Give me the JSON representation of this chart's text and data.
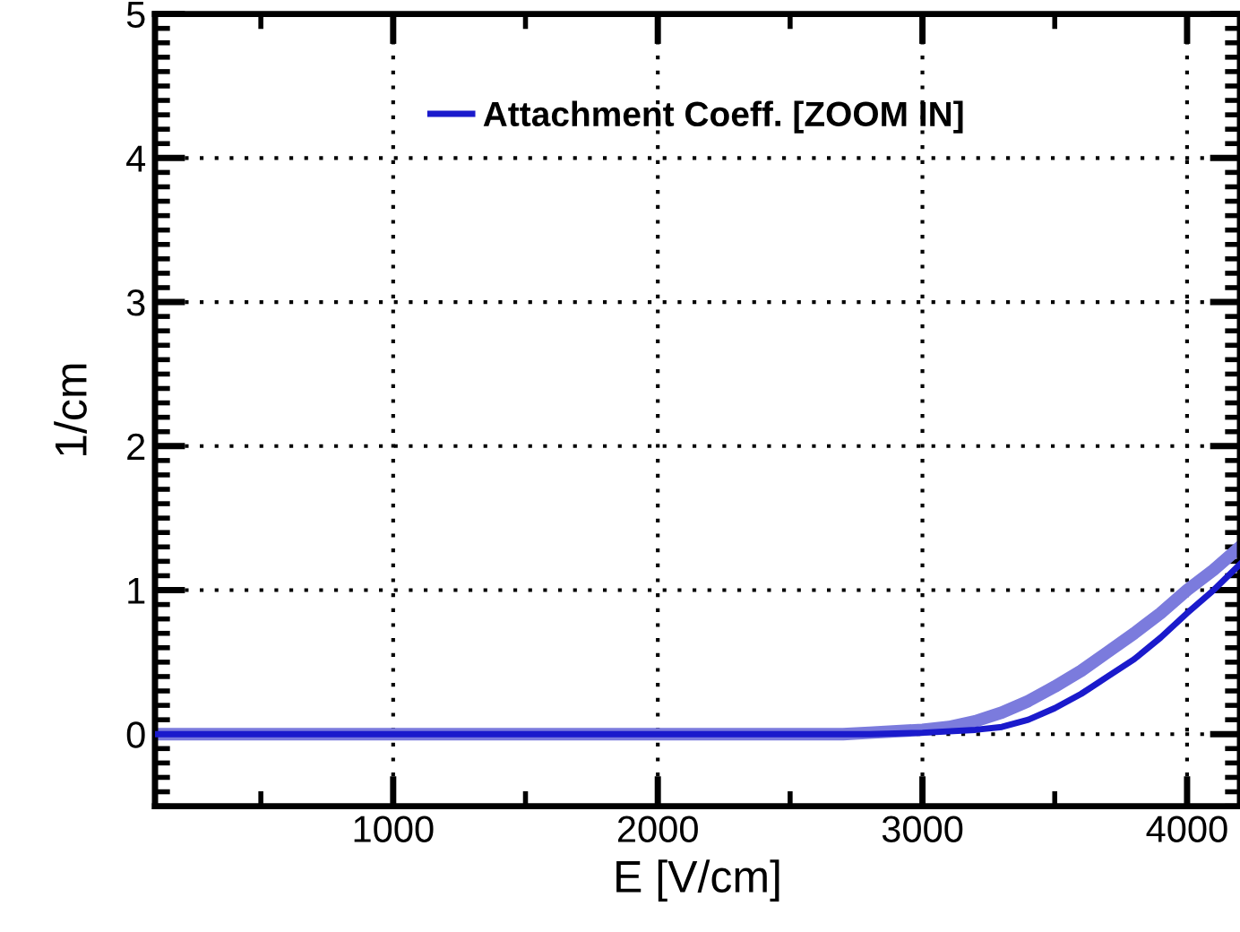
{
  "chart_data": {
    "type": "line",
    "xlabel": "E [V/cm]",
    "ylabel": "1/cm",
    "xlim": [
      100,
      4200
    ],
    "ylim": [
      -0.5,
      5
    ],
    "xticks": [
      1000,
      2000,
      3000,
      4000
    ],
    "yticks": [
      0,
      1,
      2,
      3,
      4,
      5
    ],
    "grid": true,
    "legend": "top",
    "line_style": "solid",
    "marker": "none",
    "series": [
      {
        "name": "Attachment Coeff. [ZOOM IN]",
        "color": "#1a1acc",
        "x": [
          100,
          1000,
          2000,
          2800,
          3000,
          3200,
          3300,
          3400,
          3500,
          3600,
          3700,
          3800,
          3900,
          4000,
          4100,
          4200
        ],
        "values": [
          0,
          0,
          0,
          0,
          0.01,
          0.03,
          0.05,
          0.1,
          0.18,
          0.28,
          0.4,
          0.52,
          0.67,
          0.84,
          1.0,
          1.18
        ]
      },
      {
        "color": "#7b7bdd",
        "x": [
          100,
          1000,
          2000,
          2700,
          2800,
          3000,
          3100,
          3200,
          3300,
          3400,
          3500,
          3600,
          3700,
          3800,
          3900,
          4000,
          4100,
          4200
        ],
        "values": [
          0,
          0,
          0,
          0,
          0.01,
          0.03,
          0.05,
          0.09,
          0.15,
          0.23,
          0.33,
          0.44,
          0.57,
          0.7,
          0.84,
          1.0,
          1.14,
          1.3
        ]
      }
    ]
  }
}
